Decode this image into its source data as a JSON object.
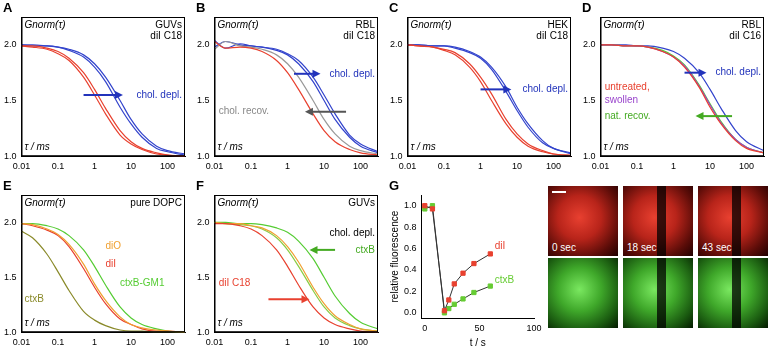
{
  "chart_data": [
    {
      "type": "line",
      "panel": "A",
      "title": "GUVs diI C18",
      "x_label": "τ / ms",
      "y_label": "Gnorm(τ)",
      "log": "x",
      "grid": false,
      "x": [
        0.01,
        0.02,
        0.05,
        0.1,
        0.2,
        0.5,
        1,
        2,
        5,
        10,
        20,
        50,
        100,
        300
      ],
      "xlim": [
        0.01,
        300
      ],
      "xticks": [
        0.01,
        0.1,
        1,
        10,
        100
      ],
      "ylim": [
        1,
        2.25
      ],
      "yticks": [
        {
          "value": 1,
          "label": "1.0"
        },
        {
          "value": 1.5,
          "label": "1.5"
        },
        {
          "value": 2,
          "label": "2.0"
        }
      ],
      "annotations": [
        {
          "text": "chol. depl.",
          "color": "#2233bb"
        }
      ],
      "series": [
        {
          "color": "#e8412f",
          "values": [
            1.99,
            1.99,
            1.97,
            1.94,
            1.88,
            1.75,
            1.6,
            1.43,
            1.23,
            1.13,
            1.07,
            1.03,
            1.01,
            1.0
          ]
        },
        {
          "color": "#e8412f",
          "values": [
            1.99,
            1.98,
            1.96,
            1.92,
            1.86,
            1.71,
            1.55,
            1.38,
            1.19,
            1.11,
            1.06,
            1.02,
            1.01,
            1.0
          ]
        },
        {
          "color": "#3344cc",
          "values": [
            2.0,
            1.99,
            1.99,
            1.98,
            1.95,
            1.89,
            1.8,
            1.67,
            1.44,
            1.29,
            1.17,
            1.07,
            1.04,
            1.01
          ]
        },
        {
          "color": "#3344cc",
          "values": [
            2.0,
            2.0,
            1.99,
            1.98,
            1.96,
            1.91,
            1.83,
            1.71,
            1.5,
            1.33,
            1.2,
            1.09,
            1.05,
            1.02
          ]
        }
      ]
    },
    {
      "type": "line",
      "panel": "B",
      "title": "RBL diI C18",
      "x_label": "τ / ms",
      "y_label": "Gnorm(τ)",
      "log": "x",
      "grid": false,
      "x": [
        0.01,
        0.02,
        0.05,
        0.1,
        0.2,
        0.5,
        1,
        2,
        5,
        10,
        20,
        50,
        100,
        300
      ],
      "xlim": [
        0.01,
        300
      ],
      "xticks": [
        0.01,
        0.1,
        1,
        10,
        100
      ],
      "ylim": [
        1,
        2.25
      ],
      "yticks": [
        {
          "value": 1,
          "label": "1.0"
        },
        {
          "value": 1.5,
          "label": "1.5"
        },
        {
          "value": 2,
          "label": "2.0"
        }
      ],
      "annotations": [
        {
          "text": "chol. depl.",
          "color": "#2233bb"
        },
        {
          "text": "chol. recov.",
          "color": "#888888"
        }
      ],
      "series": [
        {
          "color": "#e8412f",
          "values": [
            2.03,
            1.97,
            1.98,
            1.97,
            1.94,
            1.86,
            1.75,
            1.6,
            1.38,
            1.23,
            1.13,
            1.06,
            1.03,
            1.01
          ]
        },
        {
          "color": "#999999",
          "values": [
            1.96,
            2.03,
            1.99,
            1.98,
            1.96,
            1.91,
            1.83,
            1.71,
            1.5,
            1.33,
            1.2,
            1.09,
            1.05,
            1.02
          ]
        },
        {
          "color": "#3344cc",
          "values": [
            2.04,
            1.97,
            2.01,
            1.99,
            1.98,
            1.95,
            1.91,
            1.83,
            1.67,
            1.5,
            1.33,
            1.17,
            1.09,
            1.03
          ]
        },
        {
          "color": "#3344cc",
          "values": [
            1.98,
            2.03,
            2.0,
            1.99,
            1.98,
            1.96,
            1.92,
            1.86,
            1.71,
            1.55,
            1.38,
            1.19,
            1.11,
            1.04
          ]
        }
      ]
    },
    {
      "type": "line",
      "panel": "C",
      "title": "HEK diI C18",
      "x_label": "τ / ms",
      "y_label": "Gnorm(τ)",
      "log": "x",
      "grid": false,
      "x": [
        0.01,
        0.02,
        0.05,
        0.1,
        0.2,
        0.5,
        1,
        2,
        5,
        10,
        20,
        50,
        100,
        300
      ],
      "xlim": [
        0.01,
        300
      ],
      "xticks": [
        0.01,
        0.1,
        1,
        10,
        100
      ],
      "ylim": [
        1,
        2.25
      ],
      "yticks": [
        {
          "value": 1,
          "label": "1.0"
        },
        {
          "value": 1.5,
          "label": "1.5"
        },
        {
          "value": 2,
          "label": "2.0"
        }
      ],
      "annotations": [
        {
          "text": "chol. depl.",
          "color": "#2233bb"
        }
      ],
      "series": [
        {
          "color": "#e8412f",
          "values": [
            2.0,
            1.99,
            1.98,
            1.96,
            1.93,
            1.83,
            1.71,
            1.56,
            1.33,
            1.2,
            1.11,
            1.05,
            1.02,
            1.01
          ]
        },
        {
          "color": "#e8412f",
          "values": [
            2.0,
            1.99,
            1.98,
            1.95,
            1.91,
            1.8,
            1.67,
            1.5,
            1.29,
            1.17,
            1.09,
            1.04,
            1.02,
            1.0
          ]
        },
        {
          "color": "#3344cc",
          "values": [
            2.0,
            2.0,
            1.99,
            1.99,
            1.97,
            1.93,
            1.88,
            1.78,
            1.58,
            1.41,
            1.26,
            1.12,
            1.07,
            1.02
          ]
        },
        {
          "color": "#3344cc",
          "values": [
            2.0,
            2.0,
            1.99,
            1.99,
            1.98,
            1.94,
            1.89,
            1.8,
            1.62,
            1.44,
            1.29,
            1.14,
            1.07,
            1.03
          ]
        }
      ]
    },
    {
      "type": "line",
      "panel": "D",
      "title": "RBL diI C16",
      "x_label": "τ / ms",
      "y_label": "Gnorm(τ)",
      "log": "x",
      "grid": false,
      "x": [
        0.01,
        0.02,
        0.05,
        0.1,
        0.2,
        0.5,
        1,
        2,
        5,
        10,
        20,
        50,
        100,
        300
      ],
      "xlim": [
        0.01,
        300
      ],
      "xticks": [
        0.01,
        0.1,
        1,
        10,
        100
      ],
      "ylim": [
        1,
        2.25
      ],
      "yticks": [
        {
          "value": 1,
          "label": "1.0"
        },
        {
          "value": 1.5,
          "label": "1.5"
        },
        {
          "value": 2,
          "label": "2.0"
        }
      ],
      "annotations": [
        {
          "text": "untreated,",
          "color": "#e8412f"
        },
        {
          "text": "swollen",
          "color": "#9944cc"
        },
        {
          "text": "chol. depl.",
          "color": "#2233bb"
        },
        {
          "text": "nat. recov.",
          "color": "#44aa22"
        }
      ],
      "series": [
        {
          "color": "#e8412f",
          "values": [
            2.0,
            2.0,
            1.99,
            1.99,
            1.98,
            1.94,
            1.89,
            1.8,
            1.62,
            1.44,
            1.29,
            1.14,
            1.07,
            1.03
          ]
        },
        {
          "color": "#9944cc",
          "values": [
            2.0,
            2.0,
            1.99,
            1.99,
            1.98,
            1.94,
            1.89,
            1.81,
            1.63,
            1.46,
            1.3,
            1.15,
            1.08,
            1.03
          ]
        },
        {
          "color": "#55cc33",
          "values": [
            2.0,
            2.0,
            1.99,
            1.99,
            1.98,
            1.95,
            1.9,
            1.82,
            1.64,
            1.47,
            1.31,
            1.15,
            1.08,
            1.03
          ]
        },
        {
          "color": "#3344cc",
          "values": [
            2.0,
            2.0,
            2.0,
            1.99,
            1.99,
            1.97,
            1.94,
            1.88,
            1.75,
            1.6,
            1.43,
            1.23,
            1.13,
            1.05
          ]
        }
      ]
    },
    {
      "type": "line",
      "panel": "E",
      "title": "pure DOPC",
      "x_label": "τ / ms",
      "y_label": "Gnorm(τ)",
      "log": "x",
      "grid": false,
      "x": [
        0.01,
        0.02,
        0.05,
        0.1,
        0.2,
        0.5,
        1,
        2,
        5,
        10,
        20,
        50,
        100,
        300
      ],
      "xlim": [
        0.01,
        300
      ],
      "xticks": [
        0.01,
        0.1,
        1,
        10,
        100
      ],
      "ylim": [
        1,
        2.25
      ],
      "yticks": [
        {
          "value": 1,
          "label": "1.0"
        },
        {
          "value": 1.5,
          "label": "1.5"
        },
        {
          "value": 2,
          "label": "2.0"
        }
      ],
      "series": [
        {
          "name": "ctxB",
          "color": "#8a8a2a",
          "values": [
            1.92,
            1.86,
            1.71,
            1.55,
            1.38,
            1.19,
            1.11,
            1.06,
            1.02,
            1.01,
            1.01,
            1.0,
            1.0,
            1.0
          ]
        },
        {
          "name": "diO",
          "color": "#f0a030",
          "values": [
            1.99,
            1.98,
            1.94,
            1.89,
            1.8,
            1.62,
            1.44,
            1.29,
            1.14,
            1.07,
            1.04,
            1.02,
            1.01,
            1.0
          ]
        },
        {
          "name": "diI",
          "color": "#e8412f",
          "values": [
            1.99,
            1.97,
            1.93,
            1.88,
            1.78,
            1.58,
            1.41,
            1.26,
            1.12,
            1.07,
            1.03,
            1.01,
            1.01,
            1.0
          ]
        },
        {
          "name": "ctxB-GM1",
          "color": "#55cc33",
          "values": [
            1.99,
            1.99,
            1.97,
            1.94,
            1.88,
            1.75,
            1.6,
            1.43,
            1.23,
            1.13,
            1.07,
            1.03,
            1.01,
            1.0
          ]
        }
      ]
    },
    {
      "type": "line",
      "panel": "F",
      "title": "GUVs",
      "x_label": "τ / ms",
      "y_label": "Gnorm(τ)",
      "log": "x",
      "grid": false,
      "x": [
        0.01,
        0.02,
        0.05,
        0.1,
        0.2,
        0.5,
        1,
        2,
        5,
        10,
        20,
        50,
        100,
        300
      ],
      "xlim": [
        0.01,
        300
      ],
      "xticks": [
        0.01,
        0.1,
        1,
        10,
        100
      ],
      "ylim": [
        1,
        2.25
      ],
      "yticks": [
        {
          "value": 1,
          "label": "1.0"
        },
        {
          "value": 1.5,
          "label": "1.5"
        },
        {
          "value": 2,
          "label": "2.0"
        }
      ],
      "annotations": [
        {
          "text": "chol. depl.",
          "color": "#000000"
        },
        {
          "text": "ctxB",
          "color": "#44aa22"
        },
        {
          "text": "diI C18",
          "color": "#e8412f"
        }
      ],
      "series": [
        {
          "color": "#e8412f",
          "values": [
            1.99,
            1.99,
            1.97,
            1.94,
            1.88,
            1.75,
            1.6,
            1.43,
            1.23,
            1.13,
            1.07,
            1.03,
            1.01,
            1.0
          ]
        },
        {
          "color": "#f0a030",
          "values": [
            2.0,
            1.99,
            1.99,
            1.97,
            1.95,
            1.88,
            1.78,
            1.64,
            1.41,
            1.26,
            1.15,
            1.07,
            1.03,
            1.01
          ]
        },
        {
          "color": "#88cc44",
          "values": [
            2.0,
            1.99,
            1.98,
            1.97,
            1.94,
            1.86,
            1.75,
            1.6,
            1.38,
            1.23,
            1.13,
            1.06,
            1.03,
            1.01
          ]
        },
        {
          "color": "#55cc33",
          "values": [
            2.0,
            2.0,
            1.99,
            1.99,
            1.98,
            1.95,
            1.91,
            1.83,
            1.67,
            1.5,
            1.33,
            1.17,
            1.09,
            1.03
          ]
        }
      ]
    },
    {
      "type": "line",
      "panel": "G",
      "x_label": "t / s",
      "y_label": "relative fluorescence",
      "grid": false,
      "x": [
        0,
        7,
        18,
        22,
        27,
        35,
        45,
        60
      ],
      "xlim": [
        -3,
        100
      ],
      "xticks": [
        0,
        50,
        100
      ],
      "ylim": [
        -0.05,
        1.1
      ],
      "yticks": [
        {
          "value": 0,
          "label": "0.0"
        },
        0.2,
        0.4,
        0.6,
        0.8,
        {
          "value": 1,
          "label": "1.0"
        }
      ],
      "series": [
        {
          "name": "diI",
          "color": "#e8412f",
          "marker": "square",
          "values": [
            1.0,
            0.97,
            0.02,
            0.12,
            0.27,
            0.37,
            0.46,
            0.55
          ]
        },
        {
          "name": "ctxB",
          "color": "#66cc33",
          "marker": "square",
          "values": [
            0.97,
            1.0,
            0.0,
            0.04,
            0.08,
            0.13,
            0.19,
            0.25
          ]
        }
      ]
    }
  ],
  "images": [
    {
      "caption": "0 sec"
    },
    {
      "caption": "18 sec"
    },
    {
      "caption": "43 sec"
    }
  ]
}
